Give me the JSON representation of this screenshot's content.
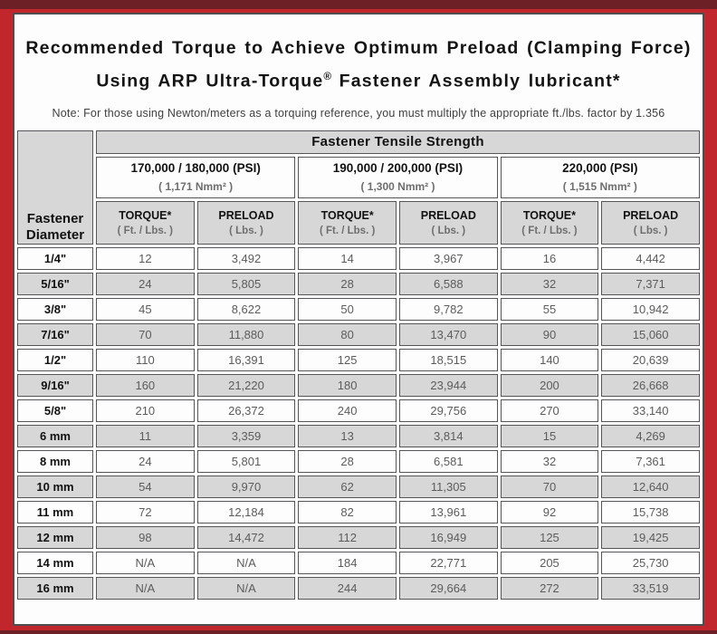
{
  "title": {
    "line1": "Recommended Torque to Achieve Optimum Preload (Clamping Force)",
    "line2_a": "Using ARP Ultra-Torque",
    "line2_reg": "®",
    "line2_b": " Fastener Assembly lubricant*"
  },
  "note": "Note: For those using Newton/meters as a torquing reference, you must multiply the appropriate ft./lbs. factor by 1.356",
  "table": {
    "corner_line1": "Fastener",
    "corner_line2": "Diameter",
    "tensile_header": "Fastener Tensile Strength",
    "groups": [
      {
        "psi": "170,000 / 180,000 (PSI)",
        "nmm": "( 1,171 Nmm² )"
      },
      {
        "psi": "190,000 / 200,000 (PSI)",
        "nmm": "( 1,300 Nmm² )"
      },
      {
        "psi": "220,000 (PSI)",
        "nmm": "( 1,515 Nmm² )"
      }
    ],
    "torque_label": "TORQUE*",
    "torque_unit": "( Ft. / Lbs. )",
    "preload_label": "PRELOAD",
    "preload_unit": "( Lbs. )",
    "rows": [
      {
        "dia": "1/4\"",
        "values": [
          "12",
          "3,492",
          "14",
          "3,967",
          "16",
          "4,442"
        ]
      },
      {
        "dia": "5/16\"",
        "values": [
          "24",
          "5,805",
          "28",
          "6,588",
          "32",
          "7,371"
        ]
      },
      {
        "dia": "3/8\"",
        "values": [
          "45",
          "8,622",
          "50",
          "9,782",
          "55",
          "10,942"
        ]
      },
      {
        "dia": "7/16\"",
        "values": [
          "70",
          "11,880",
          "80",
          "13,470",
          "90",
          "15,060"
        ]
      },
      {
        "dia": "1/2\"",
        "values": [
          "110",
          "16,391",
          "125",
          "18,515",
          "140",
          "20,639"
        ]
      },
      {
        "dia": "9/16\"",
        "values": [
          "160",
          "21,220",
          "180",
          "23,944",
          "200",
          "26,668"
        ]
      },
      {
        "dia": "5/8\"",
        "values": [
          "210",
          "26,372",
          "240",
          "29,756",
          "270",
          "33,140"
        ]
      },
      {
        "dia": "6 mm",
        "values": [
          "11",
          "3,359",
          "13",
          "3,814",
          "15",
          "4,269"
        ]
      },
      {
        "dia": "8 mm",
        "values": [
          "24",
          "5,801",
          "28",
          "6,581",
          "32",
          "7,361"
        ]
      },
      {
        "dia": "10 mm",
        "values": [
          "54",
          "9,970",
          "62",
          "11,305",
          "70",
          "12,640"
        ]
      },
      {
        "dia": "11 mm",
        "values": [
          "72",
          "12,184",
          "82",
          "13,961",
          "92",
          "15,738"
        ]
      },
      {
        "dia": "12 mm",
        "values": [
          "98",
          "14,472",
          "112",
          "16,949",
          "125",
          "19,425"
        ]
      },
      {
        "dia": "14 mm",
        "values": [
          "N/A",
          "N/A",
          "184",
          "22,771",
          "205",
          "25,730"
        ]
      },
      {
        "dia": "16 mm",
        "values": [
          "N/A",
          "N/A",
          "244",
          "29,664",
          "272",
          "33,519"
        ]
      }
    ]
  },
  "colors": {
    "frame_red": "#c1262c",
    "frame_dark_maroon": "#6d2127",
    "cell_gray": "#d7d7d7",
    "cell_border": "#56565a"
  }
}
